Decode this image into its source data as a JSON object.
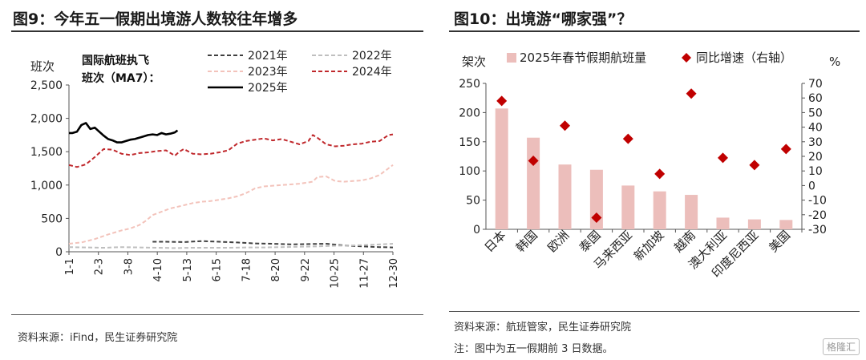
{
  "left": {
    "figure_title": "图9：今年五一假期出境游人数较往年增多",
    "source": "资料来源：iFind，民生证券研究院"
  },
  "right": {
    "figure_title": "图10：出境游“哪家强”？",
    "source": "资料来源：航班管家，民生证券研究院",
    "note": "注：图中为五一假期前 3 日数据。"
  },
  "watermark": "格隆汇",
  "chart_data": [
    {
      "type": "line",
      "title": "国际航班执飞班次（MA7）：",
      "ylabel": "班次",
      "ylim": [
        0,
        2500
      ],
      "yticks": [
        0,
        500,
        1000,
        1500,
        2000,
        2500
      ],
      "ytick_labels": [
        "0",
        "500",
        "1,000",
        "1,500",
        "2,000",
        "2,500"
      ],
      "x_categories": [
        "1-1",
        "2-3",
        "3-8",
        "4-10",
        "5-13",
        "6-15",
        "7-18",
        "8-20",
        "9-22",
        "10-25",
        "11-27",
        "12-30"
      ],
      "x_range_days": [
        1,
        365
      ],
      "grid": false,
      "legend_position": "top",
      "series": [
        {
          "name": "2021年",
          "color": "#404040",
          "dash": "dashed",
          "x": [
            95,
            110,
            130,
            150,
            170,
            190,
            210,
            230,
            250,
            270,
            290,
            310,
            330,
            350,
            365
          ],
          "y": [
            150,
            150,
            145,
            160,
            150,
            140,
            125,
            120,
            110,
            115,
            120,
            95,
            80,
            70,
            65
          ]
        },
        {
          "name": "2022年",
          "color": "#bfbfbf",
          "dash": "dashed",
          "x": [
            1,
            20,
            40,
            60,
            80,
            100,
            120,
            140,
            160,
            180,
            200,
            220,
            240,
            260,
            280,
            300,
            320,
            340,
            365
          ],
          "y": [
            70,
            65,
            60,
            70,
            65,
            60,
            55,
            60,
            60,
            60,
            65,
            65,
            70,
            75,
            80,
            90,
            95,
            105,
            120
          ]
        },
        {
          "name": "2023年",
          "color": "#f3c3bb",
          "dash": "dashed",
          "x": [
            1,
            15,
            30,
            45,
            60,
            70,
            80,
            88,
            95,
            105,
            115,
            125,
            140,
            150,
            160,
            170,
            180,
            190,
            200,
            210,
            220,
            230,
            240,
            250,
            260,
            270,
            275,
            280,
            290,
            300,
            310,
            320,
            330,
            340,
            350,
            365
          ],
          "y": [
            120,
            140,
            190,
            260,
            320,
            350,
            400,
            470,
            550,
            600,
            650,
            680,
            730,
            750,
            760,
            780,
            800,
            830,
            880,
            950,
            980,
            990,
            1000,
            1010,
            1020,
            1040,
            1050,
            1120,
            1130,
            1060,
            1050,
            1060,
            1070,
            1100,
            1150,
            1300
          ]
        },
        {
          "name": "2024年",
          "color": "#c0282c",
          "dash": "dashed",
          "x": [
            1,
            10,
            20,
            30,
            40,
            50,
            60,
            70,
            80,
            90,
            100,
            110,
            120,
            125,
            130,
            140,
            150,
            160,
            170,
            180,
            190,
            200,
            210,
            220,
            230,
            240,
            250,
            260,
            270,
            275,
            280,
            290,
            300,
            310,
            320,
            330,
            340,
            350,
            360,
            365
          ],
          "y": [
            1300,
            1270,
            1310,
            1420,
            1540,
            1530,
            1470,
            1450,
            1480,
            1490,
            1510,
            1520,
            1440,
            1500,
            1540,
            1470,
            1460,
            1470,
            1490,
            1520,
            1620,
            1660,
            1680,
            1700,
            1670,
            1690,
            1650,
            1610,
            1660,
            1750,
            1710,
            1610,
            1580,
            1590,
            1610,
            1620,
            1650,
            1660,
            1750,
            1760
          ]
        },
        {
          "name": "2025年",
          "color": "#000000",
          "dash": "solid",
          "x": [
            1,
            5,
            10,
            15,
            20,
            25,
            30,
            35,
            40,
            45,
            50,
            55,
            60,
            65,
            70,
            75,
            80,
            85,
            90,
            95,
            100,
            105,
            110,
            115,
            120,
            123
          ],
          "y": [
            1780,
            1780,
            1800,
            1900,
            1930,
            1840,
            1860,
            1800,
            1740,
            1690,
            1670,
            1640,
            1640,
            1660,
            1680,
            1690,
            1710,
            1730,
            1750,
            1760,
            1750,
            1780,
            1760,
            1770,
            1790,
            1820
          ]
        }
      ]
    },
    {
      "type": "bar",
      "ylabel": "架次",
      "ylabel_right": "%",
      "ylim": [
        0,
        250
      ],
      "yticks": [
        0,
        50,
        100,
        150,
        200,
        250
      ],
      "ylim_right": [
        -30,
        70
      ],
      "yticks_right": [
        -30,
        -20,
        -10,
        0,
        10,
        20,
        30,
        40,
        50,
        60,
        70
      ],
      "categories": [
        "日本",
        "韩国",
        "欧洲",
        "泰国",
        "马来西亚",
        "新加坡",
        "越南",
        "澳大利亚",
        "印度尼西亚",
        "美国"
      ],
      "grid": false,
      "legend_position": "top",
      "series": [
        {
          "name": "2025年春节假期航班量",
          "color": "#ecbebb",
          "axis": "left",
          "values": [
            207,
            157,
            111,
            102,
            75,
            65,
            59,
            20,
            17,
            16
          ]
        },
        {
          "name": "同比增速（右轴）",
          "color": "#c00000",
          "marker": "diamond",
          "axis": "right",
          "values": [
            58,
            17,
            41,
            -22,
            32,
            8,
            63,
            19,
            14,
            25
          ]
        }
      ]
    }
  ]
}
